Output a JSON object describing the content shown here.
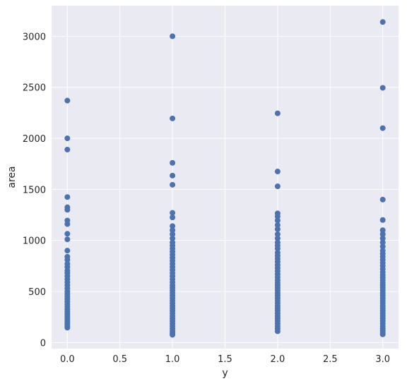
{
  "chart_data": {
    "type": "scatter",
    "title": "",
    "xlabel": "y",
    "ylabel": "area",
    "xlim": [
      -0.15,
      3.15
    ],
    "ylim": [
      -60,
      3300
    ],
    "xticks": [
      0.0,
      0.5,
      1.0,
      1.5,
      2.0,
      2.5,
      3.0
    ],
    "xtick_labels": [
      "0.0",
      "0.5",
      "1.0",
      "1.5",
      "2.0",
      "2.5",
      "3.0"
    ],
    "yticks": [
      0,
      500,
      1000,
      1500,
      2000,
      2500,
      3000
    ],
    "ytick_labels": [
      "0",
      "500",
      "1000",
      "1500",
      "2000",
      "2500",
      "3000"
    ],
    "grid": true,
    "background": "#eaeaf2",
    "point_color": "#4c72b0",
    "series": [
      {
        "points": [
          {
            "x": 0,
            "y": 2370
          },
          {
            "x": 0,
            "y": 2000
          },
          {
            "x": 0,
            "y": 1890
          },
          {
            "x": 0,
            "y": 1425
          },
          {
            "x": 0,
            "y": 1325
          },
          {
            "x": 0,
            "y": 1300
          },
          {
            "x": 0,
            "y": 1195
          },
          {
            "x": 0,
            "y": 1160
          },
          {
            "x": 0,
            "y": 1065
          },
          {
            "x": 0,
            "y": 1010
          },
          {
            "x": 0,
            "y": 900
          },
          {
            "x": 0,
            "y": 840
          },
          {
            "x": 0,
            "y": 810
          },
          {
            "x": 0,
            "y": 770
          },
          {
            "x": 0,
            "y": 740
          },
          {
            "x": 0,
            "y": 705
          },
          {
            "x": 0,
            "y": 680
          },
          {
            "x": 0,
            "y": 650
          },
          {
            "x": 0,
            "y": 620
          },
          {
            "x": 0,
            "y": 590
          },
          {
            "x": 0,
            "y": 560
          },
          {
            "x": 0,
            "y": 530
          },
          {
            "x": 0,
            "y": 500
          },
          {
            "x": 0,
            "y": 475
          },
          {
            "x": 0,
            "y": 450
          },
          {
            "x": 0,
            "y": 425
          },
          {
            "x": 0,
            "y": 400
          },
          {
            "x": 0,
            "y": 375
          },
          {
            "x": 0,
            "y": 350
          },
          {
            "x": 0,
            "y": 325
          },
          {
            "x": 0,
            "y": 300
          },
          {
            "x": 0,
            "y": 280
          },
          {
            "x": 0,
            "y": 260
          },
          {
            "x": 0,
            "y": 240
          },
          {
            "x": 0,
            "y": 220
          },
          {
            "x": 0,
            "y": 200
          },
          {
            "x": 0,
            "y": 180
          },
          {
            "x": 0,
            "y": 160
          },
          {
            "x": 0,
            "y": 145
          },
          {
            "x": 1,
            "y": 3000
          },
          {
            "x": 1,
            "y": 2195
          },
          {
            "x": 1,
            "y": 1760
          },
          {
            "x": 1,
            "y": 1635
          },
          {
            "x": 1,
            "y": 1545
          },
          {
            "x": 1,
            "y": 1270
          },
          {
            "x": 1,
            "y": 1225
          },
          {
            "x": 1,
            "y": 1140
          },
          {
            "x": 1,
            "y": 1100
          },
          {
            "x": 1,
            "y": 1060
          },
          {
            "x": 1,
            "y": 1020
          },
          {
            "x": 1,
            "y": 980
          },
          {
            "x": 1,
            "y": 950
          },
          {
            "x": 1,
            "y": 920
          },
          {
            "x": 1,
            "y": 890
          },
          {
            "x": 1,
            "y": 860
          },
          {
            "x": 1,
            "y": 830
          },
          {
            "x": 1,
            "y": 800
          },
          {
            "x": 1,
            "y": 770
          },
          {
            "x": 1,
            "y": 740
          },
          {
            "x": 1,
            "y": 710
          },
          {
            "x": 1,
            "y": 680
          },
          {
            "x": 1,
            "y": 650
          },
          {
            "x": 1,
            "y": 620
          },
          {
            "x": 1,
            "y": 590
          },
          {
            "x": 1,
            "y": 560
          },
          {
            "x": 1,
            "y": 535
          },
          {
            "x": 1,
            "y": 510
          },
          {
            "x": 1,
            "y": 485
          },
          {
            "x": 1,
            "y": 460
          },
          {
            "x": 1,
            "y": 435
          },
          {
            "x": 1,
            "y": 410
          },
          {
            "x": 1,
            "y": 385
          },
          {
            "x": 1,
            "y": 360
          },
          {
            "x": 1,
            "y": 335
          },
          {
            "x": 1,
            "y": 310
          },
          {
            "x": 1,
            "y": 285
          },
          {
            "x": 1,
            "y": 260
          },
          {
            "x": 1,
            "y": 235
          },
          {
            "x": 1,
            "y": 210
          },
          {
            "x": 1,
            "y": 185
          },
          {
            "x": 1,
            "y": 160
          },
          {
            "x": 1,
            "y": 135
          },
          {
            "x": 1,
            "y": 110
          },
          {
            "x": 1,
            "y": 90
          },
          {
            "x": 1,
            "y": 75
          },
          {
            "x": 2,
            "y": 2245
          },
          {
            "x": 2,
            "y": 1675
          },
          {
            "x": 2,
            "y": 1530
          },
          {
            "x": 2,
            "y": 1265
          },
          {
            "x": 2,
            "y": 1235
          },
          {
            "x": 2,
            "y": 1195
          },
          {
            "x": 2,
            "y": 1150
          },
          {
            "x": 2,
            "y": 1110
          },
          {
            "x": 2,
            "y": 1060
          },
          {
            "x": 2,
            "y": 1020
          },
          {
            "x": 2,
            "y": 980
          },
          {
            "x": 2,
            "y": 950
          },
          {
            "x": 2,
            "y": 920
          },
          {
            "x": 2,
            "y": 880
          },
          {
            "x": 2,
            "y": 850
          },
          {
            "x": 2,
            "y": 820
          },
          {
            "x": 2,
            "y": 790
          },
          {
            "x": 2,
            "y": 760
          },
          {
            "x": 2,
            "y": 730
          },
          {
            "x": 2,
            "y": 700
          },
          {
            "x": 2,
            "y": 670
          },
          {
            "x": 2,
            "y": 640
          },
          {
            "x": 2,
            "y": 610
          },
          {
            "x": 2,
            "y": 585
          },
          {
            "x": 2,
            "y": 560
          },
          {
            "x": 2,
            "y": 535
          },
          {
            "x": 2,
            "y": 510
          },
          {
            "x": 2,
            "y": 485
          },
          {
            "x": 2,
            "y": 460
          },
          {
            "x": 2,
            "y": 435
          },
          {
            "x": 2,
            "y": 410
          },
          {
            "x": 2,
            "y": 385
          },
          {
            "x": 2,
            "y": 360
          },
          {
            "x": 2,
            "y": 335
          },
          {
            "x": 2,
            "y": 310
          },
          {
            "x": 2,
            "y": 285
          },
          {
            "x": 2,
            "y": 260
          },
          {
            "x": 2,
            "y": 235
          },
          {
            "x": 2,
            "y": 210
          },
          {
            "x": 2,
            "y": 185
          },
          {
            "x": 2,
            "y": 160
          },
          {
            "x": 2,
            "y": 135
          },
          {
            "x": 2,
            "y": 110
          },
          {
            "x": 3,
            "y": 3140
          },
          {
            "x": 3,
            "y": 2495
          },
          {
            "x": 3,
            "y": 2100
          },
          {
            "x": 3,
            "y": 1400
          },
          {
            "x": 3,
            "y": 1200
          },
          {
            "x": 3,
            "y": 1100
          },
          {
            "x": 3,
            "y": 1060
          },
          {
            "x": 3,
            "y": 1020
          },
          {
            "x": 3,
            "y": 980
          },
          {
            "x": 3,
            "y": 940
          },
          {
            "x": 3,
            "y": 900
          },
          {
            "x": 3,
            "y": 870
          },
          {
            "x": 3,
            "y": 840
          },
          {
            "x": 3,
            "y": 810
          },
          {
            "x": 3,
            "y": 780
          },
          {
            "x": 3,
            "y": 750
          },
          {
            "x": 3,
            "y": 720
          },
          {
            "x": 3,
            "y": 690
          },
          {
            "x": 3,
            "y": 660
          },
          {
            "x": 3,
            "y": 635
          },
          {
            "x": 3,
            "y": 610
          },
          {
            "x": 3,
            "y": 585
          },
          {
            "x": 3,
            "y": 560
          },
          {
            "x": 3,
            "y": 535
          },
          {
            "x": 3,
            "y": 510
          },
          {
            "x": 3,
            "y": 485
          },
          {
            "x": 3,
            "y": 460
          },
          {
            "x": 3,
            "y": 435
          },
          {
            "x": 3,
            "y": 410
          },
          {
            "x": 3,
            "y": 385
          },
          {
            "x": 3,
            "y": 360
          },
          {
            "x": 3,
            "y": 335
          },
          {
            "x": 3,
            "y": 310
          },
          {
            "x": 3,
            "y": 285
          },
          {
            "x": 3,
            "y": 260
          },
          {
            "x": 3,
            "y": 235
          },
          {
            "x": 3,
            "y": 210
          },
          {
            "x": 3,
            "y": 185
          },
          {
            "x": 3,
            "y": 160
          },
          {
            "x": 3,
            "y": 135
          },
          {
            "x": 3,
            "y": 115
          },
          {
            "x": 3,
            "y": 95
          },
          {
            "x": 3,
            "y": 80
          }
        ]
      }
    ]
  }
}
